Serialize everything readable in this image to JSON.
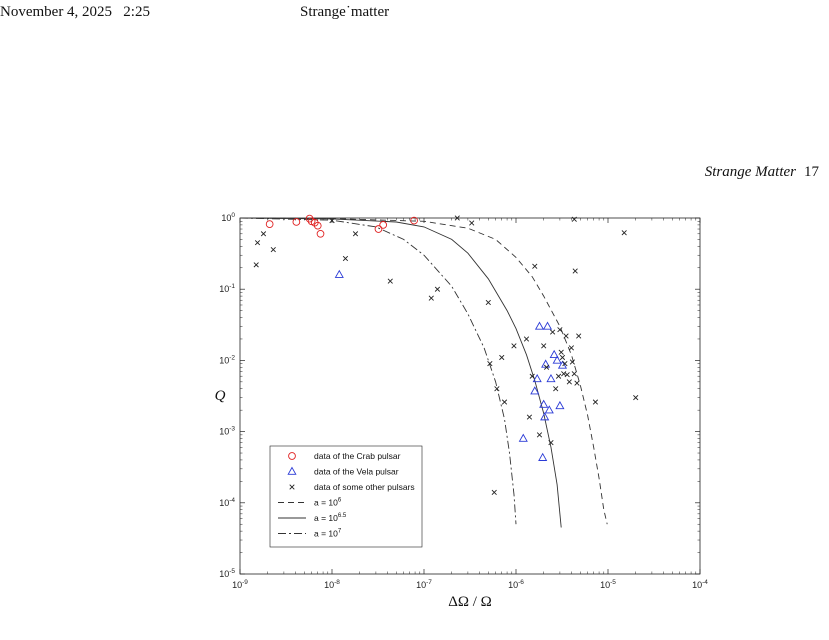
{
  "header": {
    "date_time": "November 4, 2025   2:25",
    "doc_label": "Strange˙matter",
    "running_title": "Strange Matter",
    "page_number": "17"
  },
  "chart_data": {
    "type": "scatter",
    "xscale": "log",
    "yscale": "log",
    "xlim": [
      1e-09,
      0.0001
    ],
    "ylim": [
      1e-05,
      1
    ],
    "xlabel": "ΔΩ / Ω",
    "ylabel": "Q",
    "grid": false,
    "legend_position": "bottom-left",
    "x_tick_labels": [
      "10^-9",
      "10^-8",
      "10^-7",
      "10^-6",
      "10^-5",
      "10^-4"
    ],
    "y_tick_labels": [
      "10^0",
      "10^-1",
      "10^-2",
      "10^-3",
      "10^-4",
      "10^-5"
    ],
    "series": [
      {
        "name": "data of the Crab pulsar",
        "marker": "circle",
        "color": "#e02020",
        "points": [
          [
            2.1e-09,
            0.82
          ],
          [
            4.1e-09,
            0.88
          ],
          [
            5.7e-09,
            0.98
          ],
          [
            6e-09,
            0.9
          ],
          [
            6.5e-09,
            0.86
          ],
          [
            7e-09,
            0.78
          ],
          [
            7.5e-09,
            0.6
          ],
          [
            3.2e-08,
            0.7
          ],
          [
            3.6e-08,
            0.8
          ],
          [
            7.8e-08,
            0.92
          ]
        ]
      },
      {
        "name": "data of the Vela pulsar",
        "marker": "triangle",
        "color": "#2a3ad6",
        "points": [
          [
            1.2e-08,
            0.16
          ],
          [
            1.2e-06,
            0.0008
          ],
          [
            1.6e-06,
            0.0037
          ],
          [
            1.7e-06,
            0.0055
          ],
          [
            1.8e-06,
            0.03
          ],
          [
            1.95e-06,
            0.00043
          ],
          [
            2e-06,
            0.0024
          ],
          [
            2.05e-06,
            0.0016
          ],
          [
            2.1e-06,
            0.0088
          ],
          [
            2.2e-06,
            0.03
          ],
          [
            2.3e-06,
            0.002
          ],
          [
            2.4e-06,
            0.0055
          ],
          [
            2.6e-06,
            0.012
          ],
          [
            2.8e-06,
            0.01
          ],
          [
            3e-06,
            0.0023
          ],
          [
            3.2e-06,
            0.0085
          ]
        ]
      },
      {
        "name": "data of some other pulsars",
        "marker": "x",
        "color": "#222222",
        "points": [
          [
            1.5e-09,
            0.22
          ],
          [
            1.55e-09,
            0.45
          ],
          [
            1.8e-09,
            0.6
          ],
          [
            2.3e-09,
            0.36
          ],
          [
            1e-08,
            0.92
          ],
          [
            1.4e-08,
            0.27
          ],
          [
            1.8e-08,
            0.6
          ],
          [
            4.3e-08,
            0.13
          ],
          [
            1.2e-07,
            0.075
          ],
          [
            1.4e-07,
            0.1
          ],
          [
            2.3e-07,
            1.0
          ],
          [
            3.3e-07,
            0.85
          ],
          [
            5e-07,
            0.065
          ],
          [
            5.2e-07,
            0.009
          ],
          [
            5.8e-07,
            0.00014
          ],
          [
            6.2e-07,
            0.004
          ],
          [
            7e-07,
            0.011
          ],
          [
            7.5e-07,
            0.0026
          ],
          [
            9.5e-07,
            0.016
          ],
          [
            1.3e-06,
            0.02
          ],
          [
            1.4e-06,
            0.0016
          ],
          [
            1.5e-06,
            0.006
          ],
          [
            1.6e-06,
            0.21
          ],
          [
            1.8e-06,
            0.0009
          ],
          [
            2e-06,
            0.016
          ],
          [
            2.15e-06,
            0.008
          ],
          [
            2.4e-06,
            0.0007
          ],
          [
            2.5e-06,
            0.025
          ],
          [
            2.7e-06,
            0.004
          ],
          [
            2.9e-06,
            0.006
          ],
          [
            3e-06,
            0.027
          ],
          [
            3.1e-06,
            0.013
          ],
          [
            3.2e-06,
            0.011
          ],
          [
            3.3e-06,
            0.0065
          ],
          [
            3.4e-06,
            0.009
          ],
          [
            3.5e-06,
            0.022
          ],
          [
            3.6e-06,
            0.0063
          ],
          [
            3.8e-06,
            0.005
          ],
          [
            4e-06,
            0.015
          ],
          [
            4.1e-06,
            0.0095
          ],
          [
            4.3e-06,
            0.0065
          ],
          [
            4.3e-06,
            0.96
          ],
          [
            4.4e-06,
            0.18
          ],
          [
            4.6e-06,
            0.0048
          ],
          [
            4.8e-06,
            0.022
          ],
          [
            7.3e-06,
            0.0026
          ],
          [
            1.5e-05,
            0.62
          ],
          [
            2e-05,
            0.003
          ]
        ]
      },
      {
        "name": "a = 10^6",
        "type": "line",
        "style": "dashed",
        "color": "#333333",
        "points": [
          [
            1e-09,
            1.0
          ],
          [
            1e-08,
            0.98
          ],
          [
            1e-07,
            0.9
          ],
          [
            3e-07,
            0.72
          ],
          [
            6e-07,
            0.5
          ],
          [
            1e-06,
            0.28
          ],
          [
            1.5e-06,
            0.15
          ],
          [
            2e-06,
            0.08
          ],
          [
            3e-06,
            0.03
          ],
          [
            4e-06,
            0.012
          ],
          [
            5e-06,
            0.0045
          ],
          [
            6e-06,
            0.0017
          ],
          [
            7e-06,
            0.0006
          ],
          [
            8e-06,
            0.00022
          ],
          [
            9e-06,
            8e-05
          ],
          [
            9.8e-06,
            5e-05
          ]
        ]
      },
      {
        "name": "a = 10^6.5",
        "type": "line",
        "style": "solid",
        "color": "#333333",
        "points": [
          [
            1e-09,
            1.0
          ],
          [
            1e-08,
            0.97
          ],
          [
            5e-08,
            0.88
          ],
          [
            1e-07,
            0.75
          ],
          [
            2e-07,
            0.5
          ],
          [
            3e-07,
            0.32
          ],
          [
            5e-07,
            0.14
          ],
          [
            8e-07,
            0.05
          ],
          [
            1e-06,
            0.028
          ],
          [
            1.3e-06,
            0.012
          ],
          [
            1.6e-06,
            0.0052
          ],
          [
            2e-06,
            0.0018
          ],
          [
            2.4e-06,
            0.0006
          ],
          [
            2.8e-06,
            0.00018
          ],
          [
            3.1e-06,
            4.5e-05
          ]
        ]
      },
      {
        "name": "a = 10^7",
        "type": "line",
        "style": "dashdot",
        "color": "#333333",
        "points": [
          [
            1e-09,
            1.0
          ],
          [
            1e-08,
            0.93
          ],
          [
            3e-08,
            0.75
          ],
          [
            6e-08,
            0.5
          ],
          [
            1e-07,
            0.3
          ],
          [
            2e-07,
            0.11
          ],
          [
            3e-07,
            0.045
          ],
          [
            4.5e-07,
            0.015
          ],
          [
            6e-07,
            0.005
          ],
          [
            7.5e-07,
            0.0015
          ],
          [
            8.5e-07,
            0.0005
          ],
          [
            9.5e-07,
            0.00013
          ],
          [
            1e-06,
            5e-05
          ]
        ]
      }
    ]
  }
}
